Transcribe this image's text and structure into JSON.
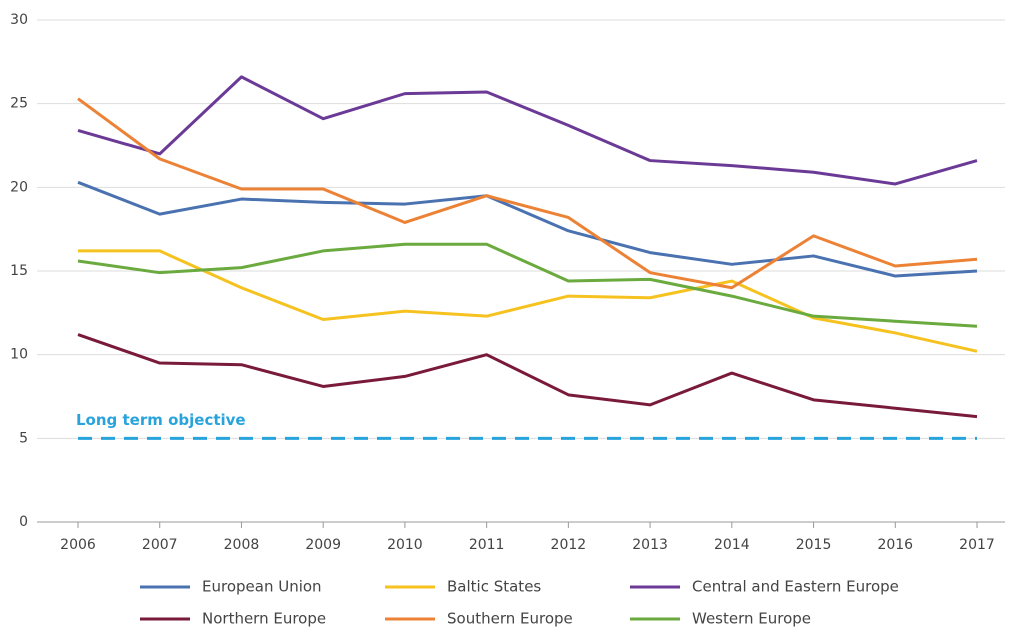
{
  "chart_data": {
    "type": "line",
    "categories": [
      "2006",
      "2007",
      "2008",
      "2009",
      "2010",
      "2011",
      "2012",
      "2013",
      "2014",
      "2015",
      "2016",
      "2017"
    ],
    "series": [
      {
        "name": "European Union",
        "color": "#4a72b0",
        "values": [
          20.3,
          18.4,
          19.3,
          19.1,
          19.0,
          19.5,
          17.4,
          16.1,
          15.4,
          15.9,
          14.7,
          15.0
        ]
      },
      {
        "name": "Baltic States",
        "color": "#f5c220",
        "values": [
          16.2,
          16.2,
          14.0,
          12.1,
          12.6,
          12.3,
          13.5,
          13.4,
          14.4,
          12.2,
          11.3,
          10.2
        ]
      },
      {
        "name": "Central and Eastern Europe",
        "color": "#6b3a96",
        "values": [
          23.4,
          22.0,
          26.6,
          24.1,
          25.6,
          25.7,
          23.7,
          21.6,
          21.3,
          20.9,
          20.2,
          21.6
        ]
      },
      {
        "name": "Northern Europe",
        "color": "#7a1a3a",
        "values": [
          11.2,
          9.5,
          9.4,
          8.1,
          8.7,
          10.0,
          7.6,
          7.0,
          8.9,
          7.3,
          6.8,
          6.3
        ]
      },
      {
        "name": "Southern Europe",
        "color": "#ec8235",
        "values": [
          25.3,
          21.7,
          19.9,
          19.9,
          17.9,
          19.5,
          18.2,
          14.9,
          14.0,
          17.1,
          15.3,
          15.7
        ]
      },
      {
        "name": "Western Europe",
        "color": "#6aaa3e",
        "values": [
          15.6,
          14.9,
          15.2,
          16.2,
          16.6,
          16.6,
          14.4,
          14.5,
          13.5,
          12.3,
          12.0,
          11.7
        ]
      }
    ],
    "reference_line": {
      "label": "Long term objective",
      "value": 5,
      "color": "#29a3dc"
    },
    "ylim": [
      0,
      30
    ],
    "yticks": [
      0,
      5,
      10,
      15,
      20,
      25,
      30
    ],
    "grid": true
  }
}
